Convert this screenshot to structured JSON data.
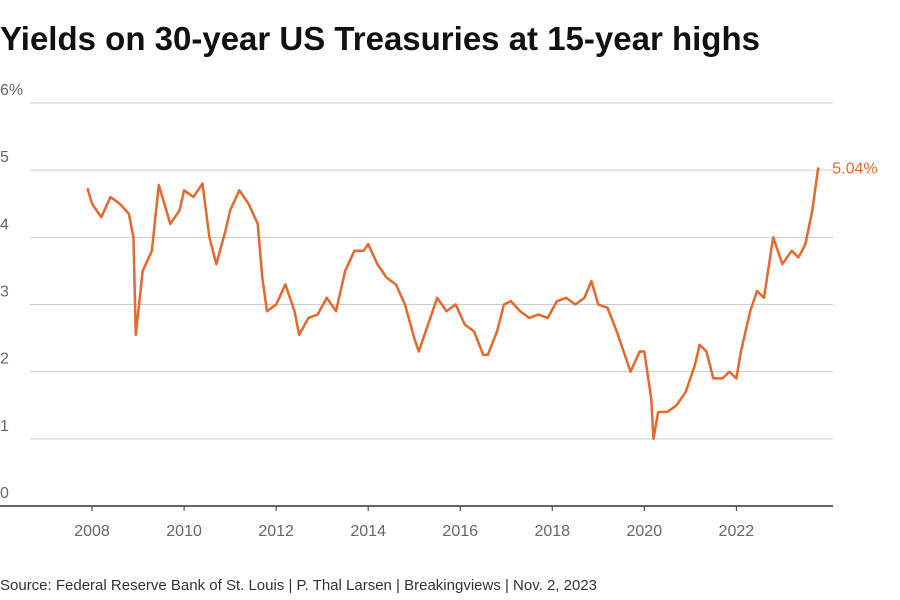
{
  "chart_data": {
    "type": "line",
    "title": "Yields on 30-year US Treasuries at 15-year highs",
    "source": "Source: Federal Reserve Bank of St. Louis | P. Thal Larsen | Breakingviews | Nov. 2, 2023",
    "annotation": "5.04%",
    "color": "#e8672a",
    "x": [
      2007.9,
      2008.0,
      2008.2,
      2008.4,
      2008.6,
      2008.8,
      2008.9,
      2008.95,
      2009.1,
      2009.3,
      2009.45,
      2009.7,
      2009.9,
      2010.0,
      2010.2,
      2010.4,
      2010.55,
      2010.7,
      2010.9,
      2011.0,
      2011.2,
      2011.4,
      2011.6,
      2011.7,
      2011.8,
      2012.0,
      2012.2,
      2012.4,
      2012.5,
      2012.7,
      2012.9,
      2013.1,
      2013.3,
      2013.5,
      2013.7,
      2013.9,
      2014.0,
      2014.2,
      2014.4,
      2014.6,
      2014.8,
      2015.0,
      2015.1,
      2015.3,
      2015.5,
      2015.7,
      2015.9,
      2016.1,
      2016.3,
      2016.5,
      2016.6,
      2016.8,
      2016.95,
      2017.1,
      2017.3,
      2017.5,
      2017.7,
      2017.9,
      2018.1,
      2018.3,
      2018.5,
      2018.7,
      2018.85,
      2019.0,
      2019.2,
      2019.4,
      2019.6,
      2019.7,
      2019.9,
      2020.0,
      2020.15,
      2020.2,
      2020.3,
      2020.5,
      2020.7,
      2020.9,
      2021.1,
      2021.2,
      2021.35,
      2021.5,
      2021.7,
      2021.85,
      2022.0,
      2022.1,
      2022.3,
      2022.45,
      2022.6,
      2022.8,
      2022.9,
      2023.0,
      2023.2,
      2023.35,
      2023.5,
      2023.65,
      2023.75,
      2023.78
    ],
    "values": [
      4.73,
      4.5,
      4.3,
      4.6,
      4.5,
      4.35,
      4.0,
      2.55,
      3.5,
      3.8,
      4.78,
      4.2,
      4.4,
      4.7,
      4.6,
      4.8,
      4.0,
      3.6,
      4.1,
      4.4,
      4.7,
      4.5,
      4.2,
      3.4,
      2.9,
      3.0,
      3.3,
      2.9,
      2.55,
      2.8,
      2.85,
      3.1,
      2.9,
      3.5,
      3.8,
      3.8,
      3.9,
      3.6,
      3.4,
      3.3,
      3.0,
      2.5,
      2.3,
      2.7,
      3.1,
      2.9,
      3.0,
      2.7,
      2.6,
      2.25,
      2.25,
      2.6,
      3.0,
      3.05,
      2.9,
      2.8,
      2.85,
      2.8,
      3.05,
      3.1,
      3.0,
      3.1,
      3.35,
      3.0,
      2.95,
      2.6,
      2.2,
      2.0,
      2.3,
      2.3,
      1.6,
      1.0,
      1.4,
      1.4,
      1.5,
      1.7,
      2.1,
      2.4,
      2.3,
      1.9,
      1.9,
      2.0,
      1.9,
      2.3,
      2.9,
      3.2,
      3.1,
      4.0,
      3.8,
      3.6,
      3.8,
      3.7,
      3.9,
      4.4,
      4.9,
      5.04
    ],
    "xlim": [
      2006,
      2024.1
    ],
    "xticks": [
      2008,
      2010,
      2012,
      2014,
      2016,
      2018,
      2020,
      2022
    ],
    "ylim": [
      0,
      6
    ],
    "yticks": [
      0,
      1,
      2,
      3,
      4,
      5,
      {
        "value": 6,
        "label": "6%"
      }
    ],
    "grid": true
  }
}
